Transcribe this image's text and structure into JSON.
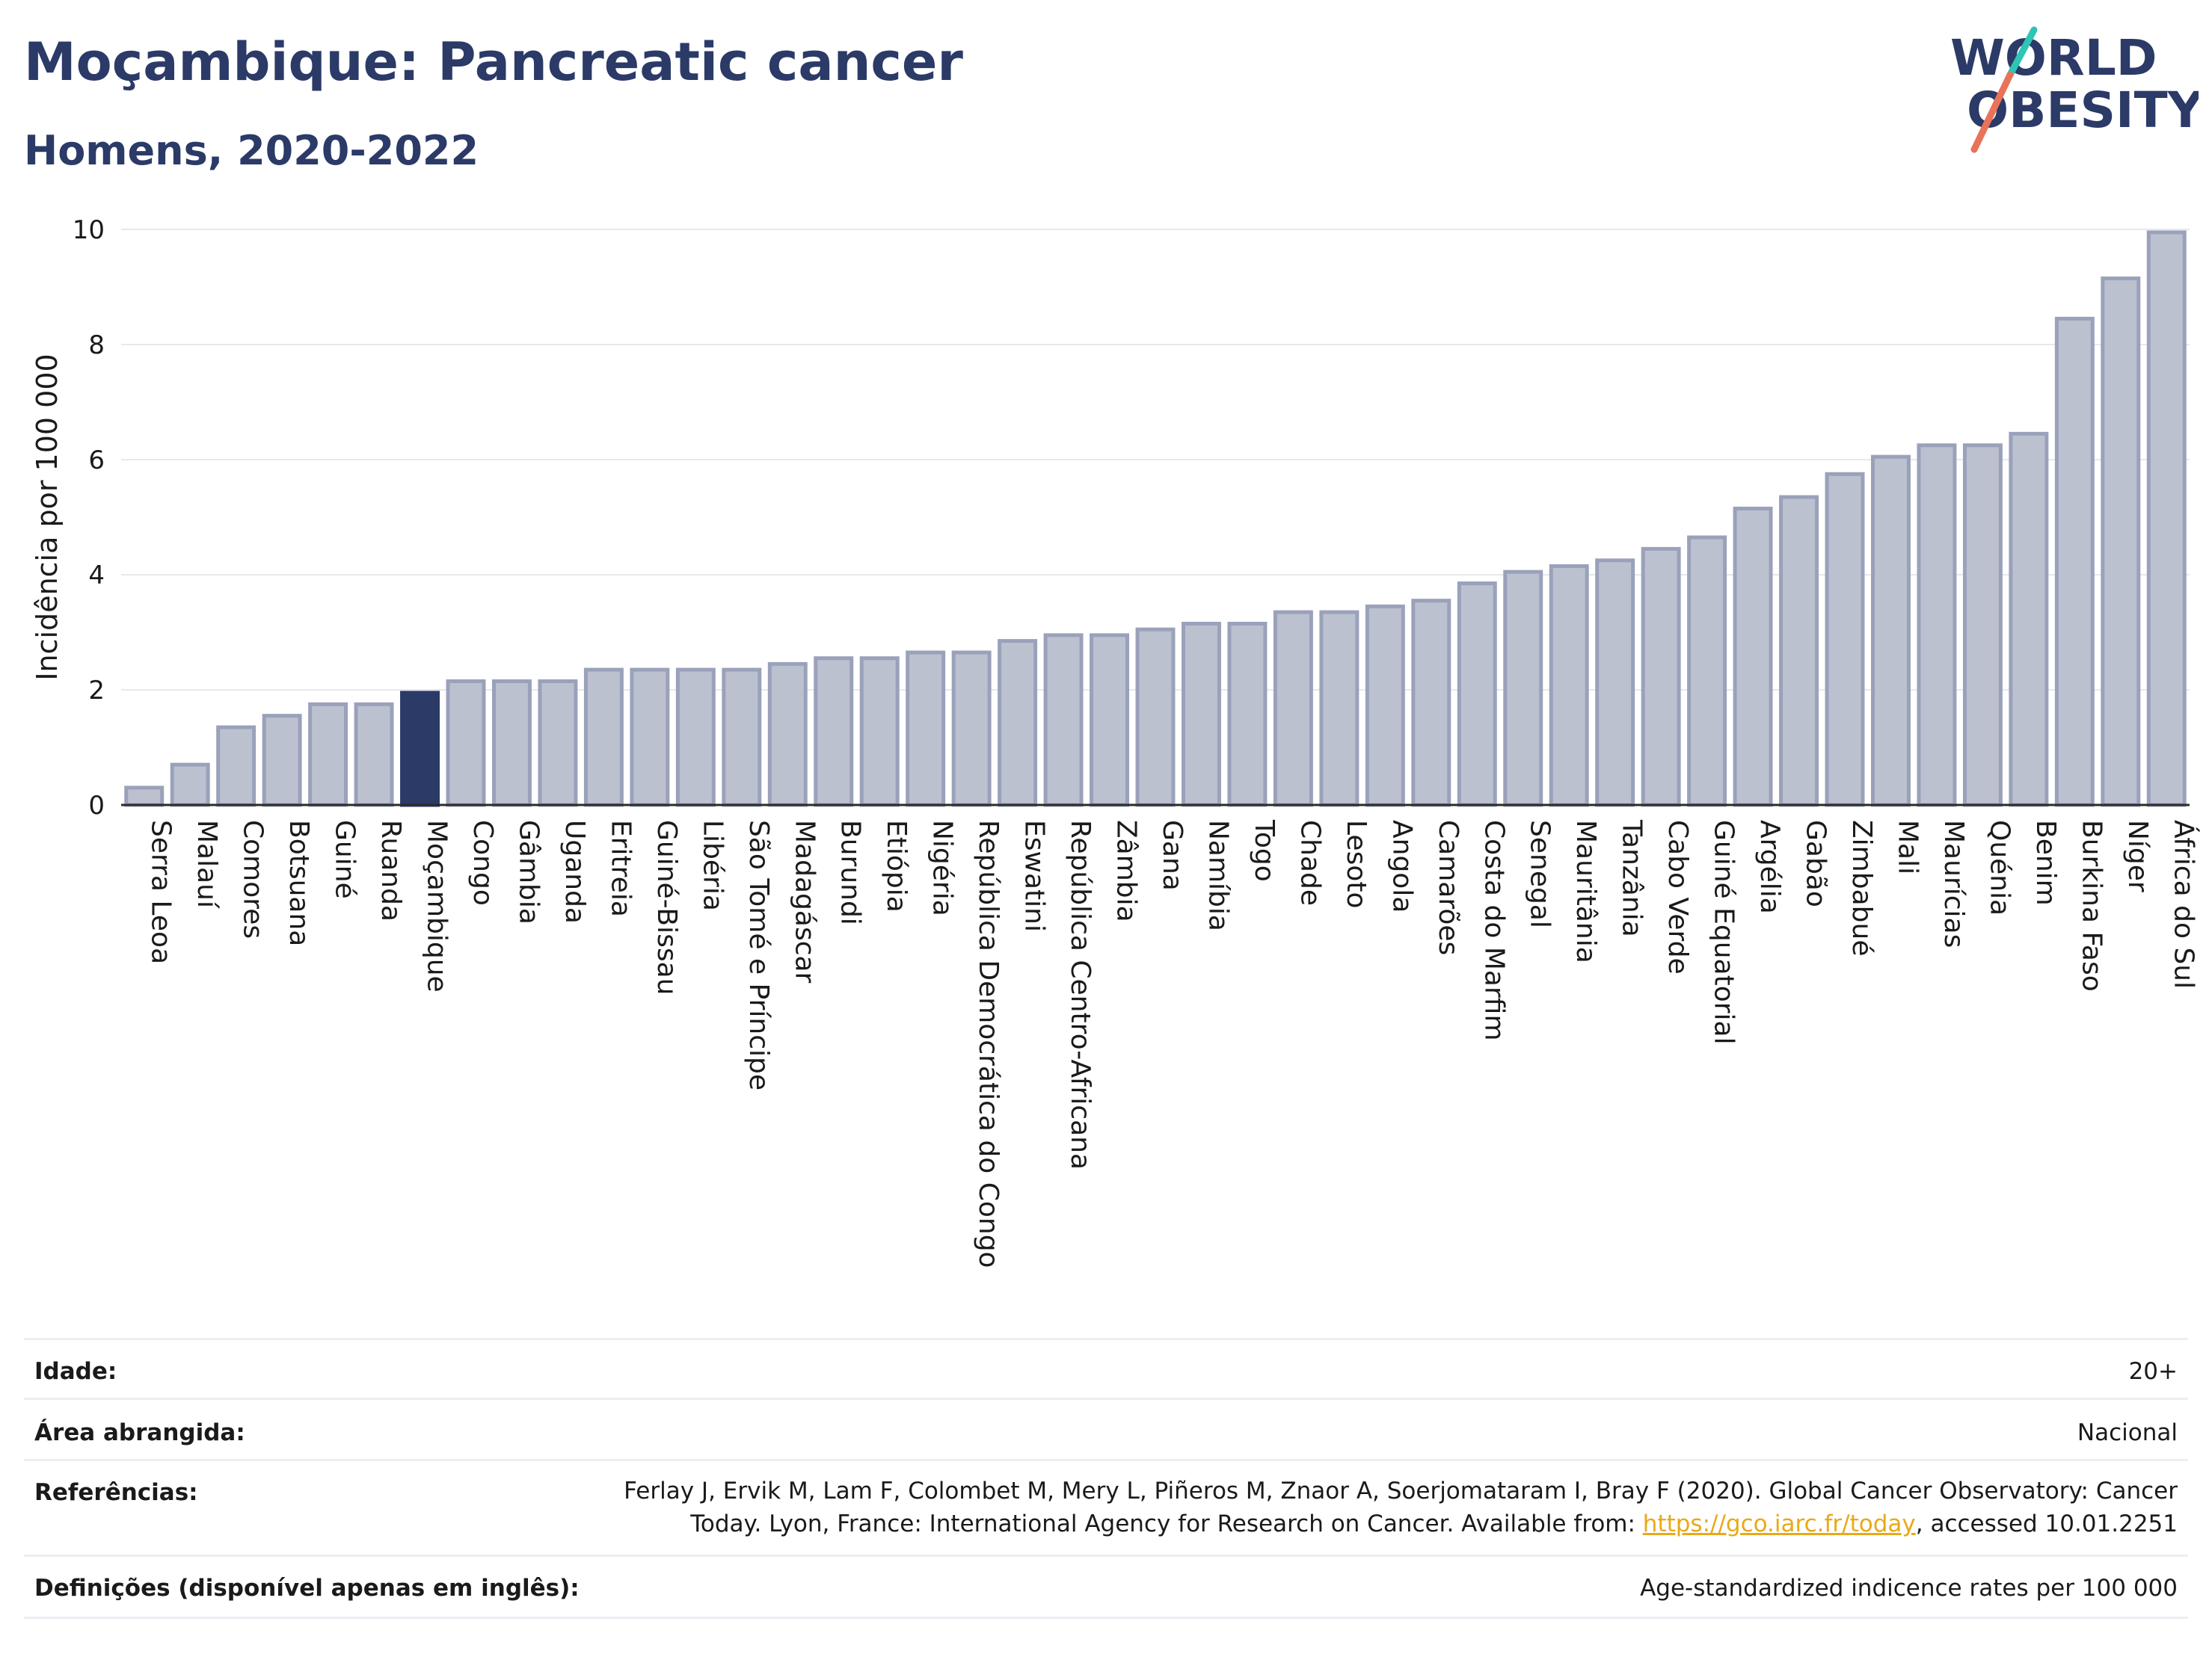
{
  "header": {
    "title": "Moçambique: Pancreatic cancer",
    "subtitle": "Homens, 2020-2022"
  },
  "logo": {
    "line1": "WORLD",
    "line2": "OBESITY",
    "colors": {
      "text": "#2b3a67",
      "slash_teal": "#2ec4b6",
      "slash_coral": "#e8735a"
    }
  },
  "chart_data": {
    "type": "bar",
    "ylabel": "Incidência por 100 000",
    "xlabel": "",
    "ylim": [
      0,
      10
    ],
    "yticks": [
      0,
      2,
      4,
      6,
      8,
      10
    ],
    "grid": true,
    "highlight": "Moçambique",
    "colors": {
      "bar": "#bcc1d0",
      "bar_edge": "#9aa1ba",
      "highlight": "#2b3a67"
    },
    "categories": [
      "Serra Leoa",
      "Malauí",
      "Comores",
      "Botsuana",
      "Guiné",
      "Ruanda",
      "Moçambique",
      "Congo",
      "Gâmbia",
      "Uganda",
      "Eritreia",
      "Guiné-Bissau",
      "Libéria",
      "São Tomé e Príncipe",
      "Madagáscar",
      "Burundi",
      "Etiópia",
      "Nigéria",
      "República Democrática do Congo",
      "Eswatini",
      "República Centro-Africana",
      "Zâmbia",
      "Gana",
      "Namíbia",
      "Togo",
      "Chade",
      "Lesoto",
      "Angola",
      "Camarões",
      "Costa do Marfim",
      "Senegal",
      "Mauritânia",
      "Tanzânia",
      "Cabo Verde",
      "Guiné Equatorial",
      "Argélia",
      "Gabão",
      "Zimbabué",
      "Mali",
      "Maurícias",
      "Quénia",
      "Benim",
      "Burkina Faso",
      "Níger",
      "África do Sul"
    ],
    "values": [
      0.3,
      0.7,
      1.35,
      1.55,
      1.75,
      1.75,
      1.95,
      2.15,
      2.15,
      2.15,
      2.35,
      2.35,
      2.35,
      2.35,
      2.45,
      2.55,
      2.55,
      2.65,
      2.65,
      2.85,
      2.95,
      2.95,
      3.05,
      3.15,
      3.15,
      3.35,
      3.35,
      3.45,
      3.55,
      3.85,
      4.05,
      4.15,
      4.25,
      4.45,
      4.65,
      5.15,
      5.35,
      5.75,
      6.05,
      6.25,
      6.25,
      6.45,
      8.45,
      9.15,
      9.95
    ]
  },
  "meta": {
    "age_label": "Idade:",
    "age_value": "20+",
    "area_label": "Área abrangida:",
    "area_value": "Nacional",
    "ref_label": "Referências:",
    "ref_text_1": "Ferlay J, Ervik M, Lam F, Colombet M, Mery L, Piñeros M, Znaor A, Soerjomataram I, Bray F (2020). Global Cancer Observatory: Cancer Today. Lyon, France: International Agency for Research on Cancer. Available from: ",
    "ref_link": "https://gco.iarc.fr/today",
    "ref_text_2": ", accessed 10.01.2251",
    "def_label": "Definições (disponível apenas em inglês):",
    "def_value": "Age-standardized indicence rates per 100 000"
  }
}
